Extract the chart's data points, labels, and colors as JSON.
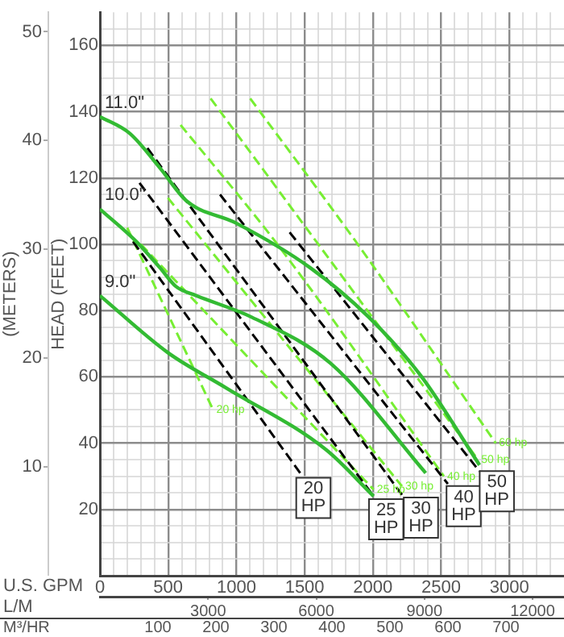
{
  "chart_data": {
    "type": "line",
    "xlabel": "U.S. GPM",
    "ylabel": "HEAD (FEET)",
    "y2label": "(METERS)",
    "x2label": "L/M",
    "xlim": [
      0,
      3400
    ],
    "ylim": [
      0,
      170
    ],
    "y2lim": [
      0,
      51.8
    ],
    "x2lim": [
      0,
      12870
    ],
    "xticks": [
      0,
      {
        "value": 100,
        "label": null
      },
      {
        "value": 200,
        "label": null
      },
      {
        "value": 300,
        "label": null
      },
      {
        "value": 400,
        "label": null
      },
      500,
      {
        "value": 600,
        "label": null
      },
      {
        "value": 700,
        "label": null
      },
      {
        "value": 800,
        "label": null
      },
      {
        "value": 900,
        "label": null
      },
      1000,
      {
        "value": 1100,
        "label": null
      },
      {
        "value": 1200,
        "label": null
      },
      {
        "value": 1300,
        "label": null
      },
      {
        "value": 1400,
        "label": null
      },
      1500,
      {
        "value": 1600,
        "label": null
      },
      {
        "value": 1700,
        "label": null
      },
      {
        "value": 1800,
        "label": null
      },
      {
        "value": 1900,
        "label": null
      },
      2000,
      {
        "value": 2100,
        "label": null
      },
      {
        "value": 2200,
        "label": null
      },
      {
        "value": 2300,
        "label": null
      },
      {
        "value": 2400,
        "label": null
      },
      2500,
      {
        "value": 2600,
        "label": null
      },
      {
        "value": 2700,
        "label": null
      },
      {
        "value": 2800,
        "label": null
      },
      {
        "value": 2900,
        "label": null
      },
      3000,
      {
        "value": 3100,
        "label": null
      },
      {
        "value": 3200,
        "label": null
      },
      {
        "value": 3300,
        "label": null
      }
    ],
    "yticks": [
      {
        "value": 5,
        "label": null
      },
      {
        "value": 10,
        "label": null
      },
      {
        "value": 15,
        "label": null
      },
      20,
      {
        "value": 25,
        "label": null
      },
      {
        "value": 30,
        "label": null
      },
      {
        "value": 35,
        "label": null
      },
      40,
      {
        "value": 45,
        "label": null
      },
      {
        "value": 50,
        "label": null
      },
      {
        "value": 55,
        "label": null
      },
      60,
      {
        "value": 65,
        "label": null
      },
      {
        "value": 70,
        "label": null
      },
      {
        "value": 75,
        "label": null
      },
      80,
      {
        "value": 85,
        "label": null
      },
      {
        "value": 90,
        "label": null
      },
      {
        "value": 95,
        "label": null
      },
      100,
      {
        "value": 105,
        "label": null
      },
      {
        "value": 110,
        "label": null
      },
      {
        "value": 115,
        "label": null
      },
      120,
      {
        "value": 125,
        "label": null
      },
      {
        "value": 130,
        "label": null
      },
      {
        "value": 135,
        "label": null
      },
      140,
      {
        "value": 145,
        "label": null
      },
      {
        "value": 150,
        "label": null
      },
      {
        "value": 155,
        "label": null
      },
      160,
      {
        "value": 165,
        "label": null
      }
    ],
    "y2ticks": [
      10,
      20,
      30,
      40,
      50
    ],
    "x2ticks": [
      3000,
      6000,
      9000,
      12000
    ],
    "grid": true,
    "legend": false,
    "marker": "none",
    "series": [
      {
        "name": "11.0\"",
        "color": "#33bb33",
        "line_style": "solid",
        "x": [
          0,
          220,
          440,
          637,
          997,
          1541,
          1970,
          2352,
          2781
        ],
        "values": [
          138.5,
          133.4,
          123,
          113,
          106.4,
          92.9,
          78,
          60.3,
          33.4
        ]
      },
      {
        "name": "10.0\"",
        "color": "#33bb33",
        "line_style": "solid",
        "x": [
          0,
          267,
          440,
          556,
          707,
          1112,
          1692,
          2387
        ],
        "values": [
          110.6,
          100.8,
          92.9,
          87.3,
          84.5,
          78,
          64,
          31
        ]
      },
      {
        "name": "9.0\"",
        "color": "#33bb33",
        "line_style": "solid",
        "x": [
          0,
          498,
          927,
          1657,
          2005
        ],
        "values": [
          84.5,
          67.3,
          56.6,
          38,
          24
        ]
      },
      {
        "color": "#000000",
        "line_style": "dashed",
        "x": [
          243,
          1483
        ],
        "values": [
          100.8,
          30.1
        ]
      },
      {
        "color": "#000000",
        "line_style": "dashed",
        "x": [
          290,
          2005
        ],
        "values": [
          118.5,
          24
        ]
      },
      {
        "color": "#000000",
        "line_style": "dashed",
        "x": [
          348,
          2213
        ],
        "values": [
          129,
          24.4
        ]
      },
      {
        "color": "#000000",
        "line_style": "dashed",
        "x": [
          880,
          2549
        ],
        "values": [
          115,
          27.7
        ]
      },
      {
        "color": "#000000",
        "line_style": "dashed",
        "x": [
          1390,
          2781
        ],
        "values": [
          103.6,
          31.5
        ]
      },
      {
        "name": "20 hp",
        "color": "#77ee33",
        "line_style": "dashed",
        "x": [
          200,
          830
        ],
        "values": [
          105,
          50
        ]
      },
      {
        "name": "25 hp",
        "color": "#77ee33",
        "line_style": "dashed",
        "x": [
          300,
          2005
        ],
        "values": [
          100,
          26
        ]
      },
      {
        "name": "30 hp",
        "color": "#77ee33",
        "line_style": "dashed",
        "x": [
          498,
          2213
        ],
        "values": [
          114,
          27
        ]
      },
      {
        "name": "40 hp",
        "color": "#77ee33",
        "line_style": "dashed",
        "x": [
          591,
          1300,
          2520
        ],
        "values": [
          136,
          100,
          30
        ]
      },
      {
        "name": "50 hp",
        "color": "#77ee33",
        "line_style": "dashed",
        "x": [
          811,
          1600,
          2770
        ],
        "values": [
          144,
          100,
          35
        ]
      },
      {
        "name": "60 hp",
        "color": "#77ee33",
        "line_style": "dashed",
        "x": [
          1101,
          1889,
          2900
        ],
        "values": [
          144,
          100,
          40
        ]
      }
    ],
    "annotations": [
      {
        "text": "20 HP",
        "x": 1564,
        "y": 23.5
      },
      {
        "text": "25 HP",
        "x": 2097,
        "y": 17
      },
      {
        "text": "30 HP",
        "x": 2352,
        "y": 17.5
      },
      {
        "text": "40 HP",
        "x": 2665,
        "y": 21
      },
      {
        "text": "50 HP",
        "x": 2908,
        "y": 25.5
      },
      "M³/HR",
      "100",
      "200",
      "300",
      "400",
      "500",
      "600",
      "700"
    ]
  }
}
